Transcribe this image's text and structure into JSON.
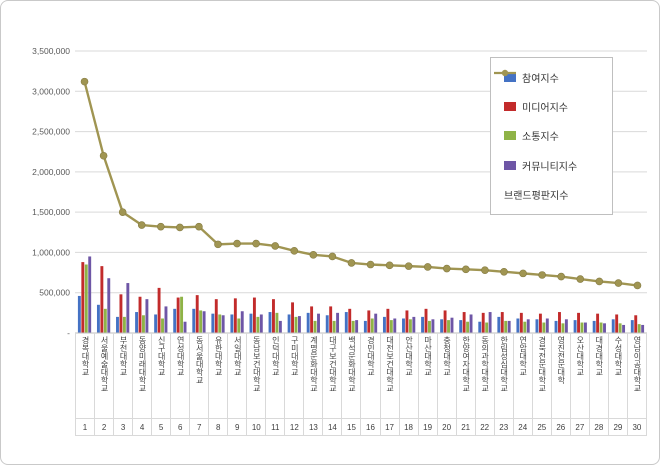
{
  "chart_data": {
    "type": "bar+line",
    "title": "",
    "categories": [
      "경복대학교",
      "서울예술대학교",
      "부천대학교",
      "동양미래대학교",
      "신구대학교",
      "연성대학교",
      "동서울대학교",
      "유한대학교",
      "서일대학교",
      "동남보건대학교",
      "인덕대학교",
      "구미대학교",
      "계명문화대학교",
      "대구보건대학교",
      "백석문화대학교",
      "경민대학교",
      "대전보건대학교",
      "안산대학교",
      "마산대학교",
      "충청대학교",
      "한양여자대학교",
      "동의과학대학교",
      "한림성심대학교",
      "연암대학교",
      "경북전문대학교",
      "영진전문대학",
      "오산대학교",
      "대경대학교",
      "수성대학교",
      "영남이공대학교"
    ],
    "ranks": [
      "1",
      "2",
      "3",
      "4",
      "5",
      "6",
      "7",
      "8",
      "9",
      "10",
      "11",
      "12",
      "13",
      "14",
      "15",
      "16",
      "17",
      "18",
      "19",
      "20",
      "21",
      "22",
      "23",
      "24",
      "25",
      "26",
      "27",
      "28",
      "29",
      "30"
    ],
    "series": [
      {
        "name": "참여지수",
        "type": "bar",
        "color": "#4472C4",
        "values": [
          460000,
          350000,
          200000,
          260000,
          230000,
          300000,
          300000,
          240000,
          230000,
          240000,
          260000,
          230000,
          250000,
          220000,
          260000,
          150000,
          200000,
          180000,
          200000,
          170000,
          160000,
          140000,
          200000,
          180000,
          170000,
          150000,
          160000,
          150000,
          170000,
          160000
        ]
      },
      {
        "name": "미디어지수",
        "type": "bar",
        "color": "#C22B2B",
        "values": [
          880000,
          830000,
          480000,
          450000,
          560000,
          440000,
          470000,
          420000,
          430000,
          440000,
          420000,
          380000,
          330000,
          330000,
          300000,
          280000,
          300000,
          280000,
          300000,
          280000,
          260000,
          250000,
          260000,
          250000,
          240000,
          260000,
          250000,
          240000,
          230000,
          220000
        ]
      },
      {
        "name": "소통지수",
        "type": "bar",
        "color": "#8FB347",
        "values": [
          850000,
          300000,
          200000,
          220000,
          180000,
          450000,
          280000,
          230000,
          180000,
          200000,
          250000,
          200000,
          150000,
          150000,
          150000,
          180000,
          160000,
          170000,
          150000,
          160000,
          140000,
          130000,
          150000,
          140000,
          130000,
          120000,
          130000,
          130000,
          120000,
          110000
        ]
      },
      {
        "name": "커뮤니티지수",
        "type": "bar",
        "color": "#6E56A6",
        "values": [
          950000,
          680000,
          620000,
          420000,
          330000,
          140000,
          270000,
          220000,
          270000,
          230000,
          150000,
          210000,
          240000,
          250000,
          160000,
          240000,
          180000,
          200000,
          170000,
          190000,
          230000,
          260000,
          150000,
          170000,
          180000,
          170000,
          130000,
          120000,
          100000,
          100000
        ]
      },
      {
        "name": "브랜드평판지수",
        "type": "line",
        "color": "#A09552",
        "values": [
          3120000,
          2200000,
          1500000,
          1340000,
          1320000,
          1310000,
          1320000,
          1100000,
          1110000,
          1110000,
          1080000,
          1020000,
          970000,
          950000,
          870000,
          850000,
          840000,
          830000,
          820000,
          800000,
          790000,
          780000,
          760000,
          740000,
          720000,
          700000,
          670000,
          640000,
          620000,
          590000
        ]
      }
    ],
    "y_axis": {
      "min": 0,
      "max": 3500000,
      "step": 500000,
      "tick_labels": [
        "3,500,000",
        "3,000,000",
        "2,500,000",
        "2,000,000",
        "1,500,000",
        "1,000,000",
        "500,000",
        "-"
      ]
    },
    "grid": true,
    "legend_position": "right-top",
    "colors": {
      "grid": "#D9D9D9",
      "axis": "#BFBFBF",
      "tick_text": "#595959"
    }
  }
}
